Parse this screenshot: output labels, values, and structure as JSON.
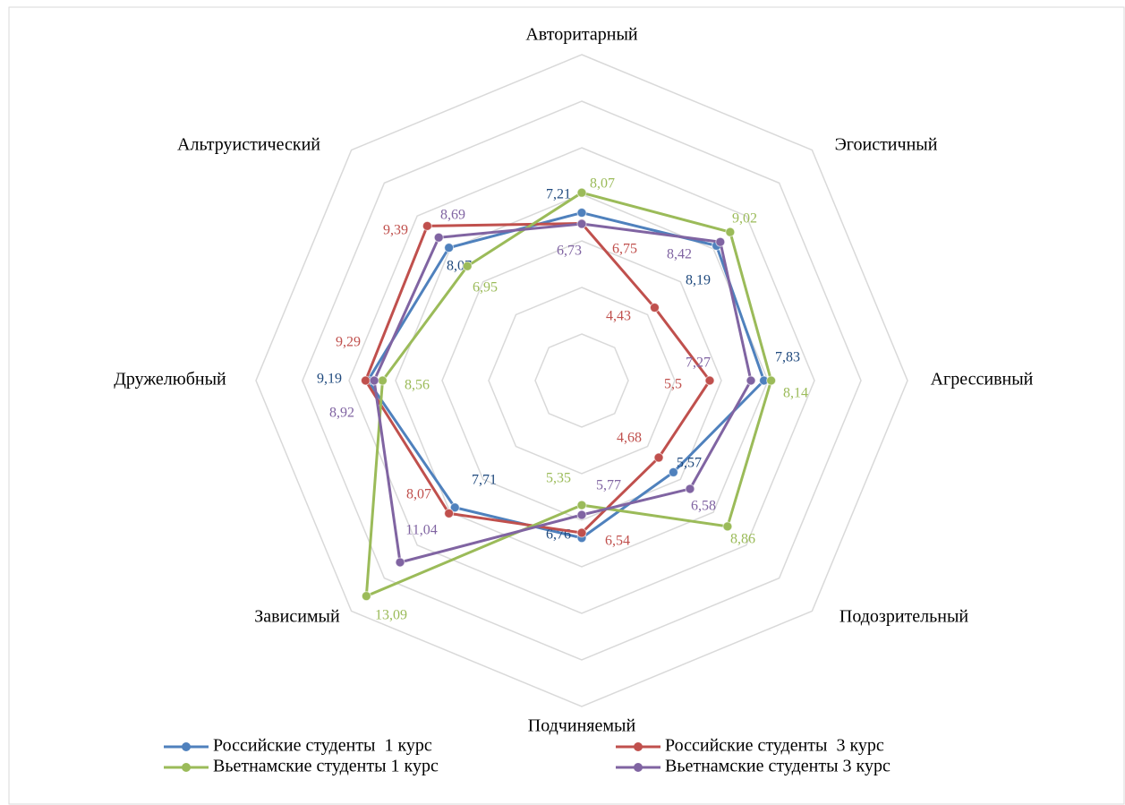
{
  "chart_data": {
    "type": "radar",
    "categories": [
      "Авторитарный",
      "Эгоистичный",
      "Агрессивный",
      "Подозрительный",
      "Подчиняемый",
      "Зависимый",
      "Дружелюбный",
      "Альтруистический"
    ],
    "ylim": [
      0,
      14
    ],
    "yticks": [
      0,
      2,
      4,
      6,
      8,
      10,
      12,
      14
    ],
    "grid": true,
    "legend": "bottom",
    "series": [
      {
        "name": "Российские студенты  1 курс",
        "color": "#4f81bd",
        "values": [
          7.21,
          8.19,
          7.83,
          5.57,
          6.76,
          7.71,
          9.19,
          8.07
        ],
        "value_labels": [
          "7,21",
          "8,19",
          "7,83",
          "5,57",
          "6,76",
          "7,71",
          "9,19",
          "8,07"
        ]
      },
      {
        "name": "Российские студенты  3 курс",
        "color": "#c0504d",
        "values": [
          6.75,
          4.43,
          5.5,
          4.68,
          6.54,
          8.07,
          9.29,
          9.39
        ],
        "value_labels": [
          "6,75",
          "4,43",
          "5,5",
          "4,68",
          "6,54",
          "8,07",
          "9,29",
          "9,39"
        ]
      },
      {
        "name": "Вьетнамские студенты 1 курс",
        "color": "#9bbb59",
        "values": [
          8.07,
          9.02,
          8.14,
          8.86,
          5.35,
          13.09,
          8.56,
          6.95
        ],
        "value_labels": [
          "8,07",
          "9,02",
          "8,14",
          "8,86",
          "5,35",
          "13,09",
          "8,56",
          "6,95"
        ]
      },
      {
        "name": "Вьетнамские студенты 3 курс",
        "color": "#8064a2",
        "values": [
          6.73,
          8.42,
          7.27,
          6.58,
          5.77,
          11.04,
          8.92,
          8.69
        ],
        "value_labels": [
          "6,73",
          "8,42",
          "7,27",
          "6,58",
          "5,77",
          "11,04",
          "8,92",
          "8,69"
        ]
      }
    ]
  }
}
